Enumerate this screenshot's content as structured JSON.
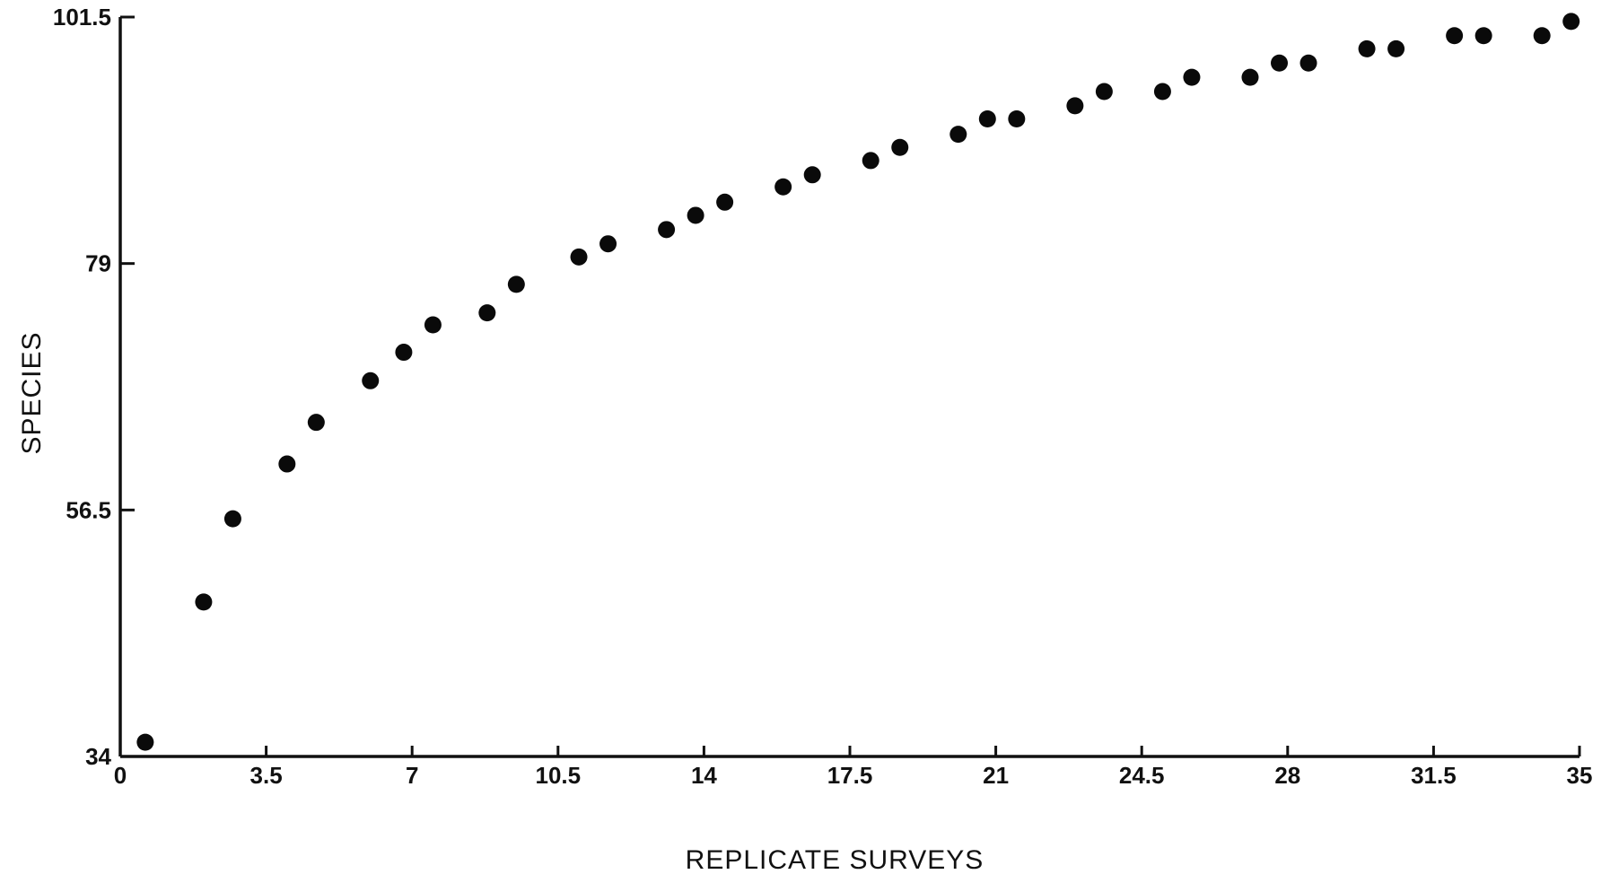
{
  "chart_data": {
    "type": "scatter",
    "xlabel": "REPLICATE SURVEYS",
    "ylabel": "SPECIES",
    "xlim": [
      0,
      35
    ],
    "ylim": [
      34,
      101.5
    ],
    "xticks": [
      "0",
      "3.5",
      "7",
      "10.5",
      "14",
      "17.5",
      "21",
      "24.5",
      "28",
      "31.5",
      "35"
    ],
    "yticks": [
      "34",
      "56.5",
      "79",
      "101.5"
    ],
    "grid": false,
    "series": [
      {
        "x": [
          0.6,
          2.0,
          2.7,
          4.0,
          4.7,
          6.0,
          6.8,
          7.5,
          8.8,
          9.5,
          11.0,
          11.7,
          13.1,
          13.8,
          14.5,
          15.9,
          16.6,
          18.0,
          18.7,
          20.1,
          20.8,
          21.5,
          22.9,
          23.6,
          25.0,
          25.7,
          27.1,
          27.8,
          28.5,
          29.9,
          30.6,
          32.0,
          32.7,
          34.1,
          34.8
        ],
        "y": [
          35.3,
          48.1,
          55.7,
          60.7,
          64.5,
          68.3,
          70.9,
          73.4,
          74.5,
          77.1,
          79.6,
          80.8,
          82.1,
          83.4,
          84.6,
          86.0,
          87.1,
          88.4,
          89.6,
          90.8,
          92.2,
          92.2,
          93.4,
          94.7,
          94.7,
          96.0,
          96.0,
          97.3,
          97.3,
          98.6,
          98.6,
          99.8,
          99.8,
          99.8,
          101.1
        ]
      }
    ]
  }
}
